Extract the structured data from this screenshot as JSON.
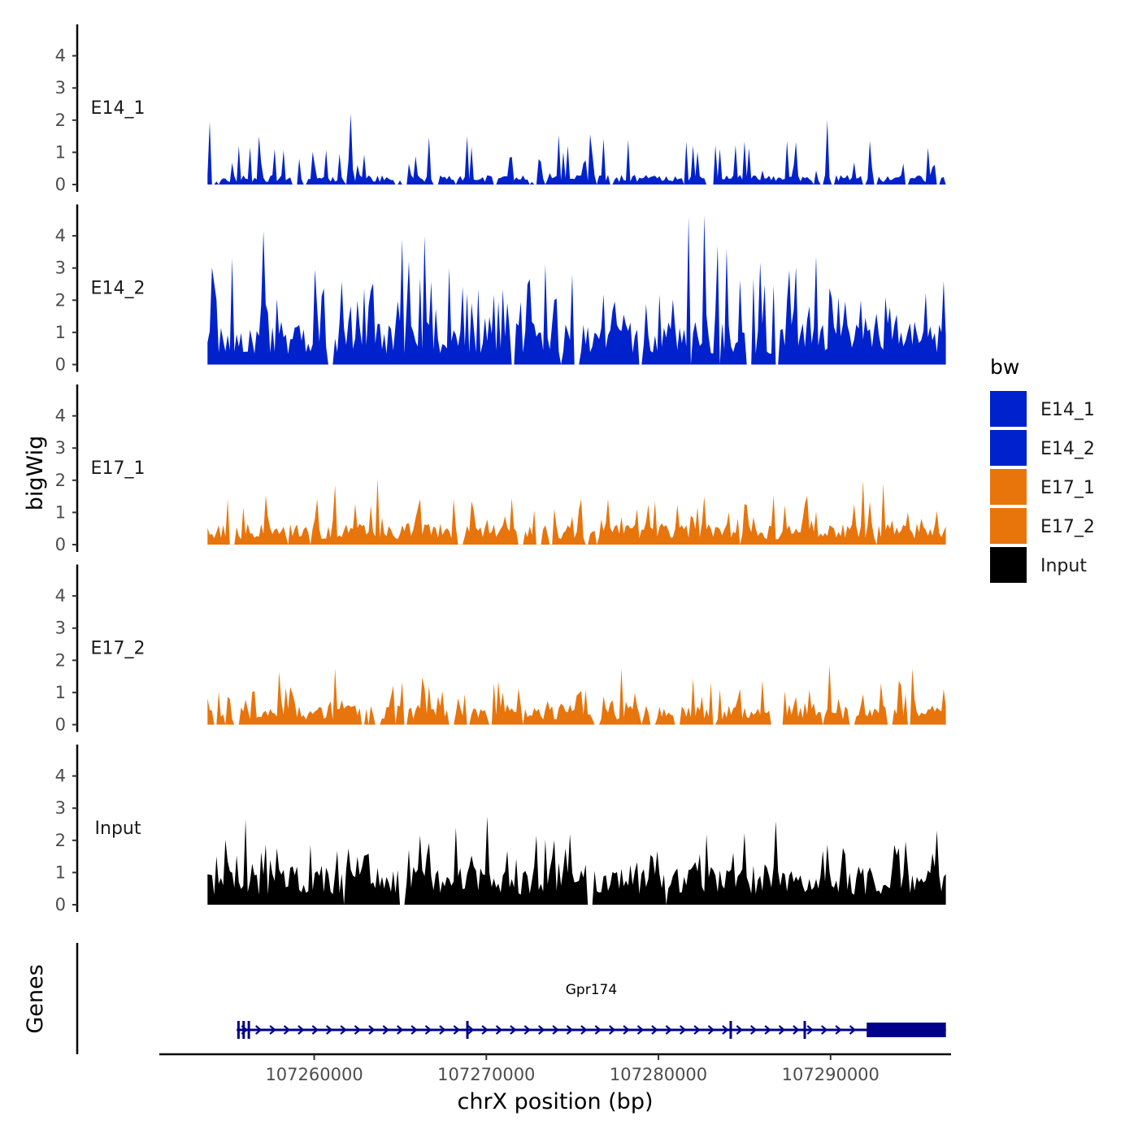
{
  "chart_data": {
    "type": "area",
    "y_axis_title": "bigWig",
    "gene_track_title": "Genes",
    "x_axis_title": "chrX position (bp)",
    "chromosome": "chrX",
    "x_range": [
      107251000,
      107297000
    ],
    "data_range": [
      107253800,
      107296700
    ],
    "y_range": [
      0,
      4.9
    ],
    "y_ticks": [
      0,
      1,
      2,
      3,
      4
    ],
    "x_ticks": [
      {
        "value": 107260000,
        "label": "107260000"
      },
      {
        "value": 107270000,
        "label": "107270000"
      },
      {
        "value": 107280000,
        "label": "107280000"
      },
      {
        "value": 107290000,
        "label": "107290000"
      }
    ],
    "legend": {
      "title": "bw",
      "entries": [
        {
          "label": "E14_1",
          "color": "#0022CC"
        },
        {
          "label": "E14_2",
          "color": "#0022CC"
        },
        {
          "label": "E17_1",
          "color": "#E8740C"
        },
        {
          "label": "E17_2",
          "color": "#E8740C"
        },
        {
          "label": "Input",
          "color": "#000000"
        }
      ]
    },
    "tracks": [
      {
        "name": "E14_1",
        "color": "#0022CC",
        "seed": 11,
        "base": 0.25,
        "spike_prob": 0.22,
        "spike_max": 1.3,
        "zero_prob": 0.3,
        "peaks": [
          [
            107253900,
            1.95
          ],
          [
            107262100,
            2.2
          ],
          [
            107289800,
            2.0
          ],
          [
            107256800,
            1.5
          ],
          [
            107295700,
            1.15
          ]
        ]
      },
      {
        "name": "E14_2",
        "color": "#0022CC",
        "seed": 23,
        "base": 1.1,
        "spike_prob": 0.3,
        "spike_max": 2.2,
        "zero_prob": 0.08,
        "peaks": [
          [
            107257100,
            4.15
          ],
          [
            107281800,
            4.6
          ],
          [
            107282600,
            4.65
          ],
          [
            107265100,
            3.9
          ],
          [
            107266400,
            4.0
          ],
          [
            107283400,
            3.7
          ],
          [
            107284000,
            3.6
          ],
          [
            107255200,
            3.3
          ],
          [
            107296600,
            2.6
          ]
        ]
      },
      {
        "name": "E17_1",
        "color": "#E8740C",
        "seed": 37,
        "base": 0.55,
        "spike_prob": 0.25,
        "spike_max": 1.0,
        "zero_prob": 0.12,
        "peaks": [
          [
            107263700,
            2.05
          ],
          [
            107291900,
            2.0
          ],
          [
            107261200,
            1.85
          ],
          [
            107293000,
            1.9
          ],
          [
            107282700,
            1.5
          ]
        ]
      },
      {
        "name": "E17_2",
        "color": "#E8740C",
        "seed": 53,
        "base": 0.5,
        "spike_prob": 0.28,
        "spike_max": 1.0,
        "zero_prob": 0.18,
        "peaks": [
          [
            107261200,
            1.75
          ],
          [
            107277800,
            1.75
          ],
          [
            107289900,
            1.85
          ],
          [
            107294800,
            1.75
          ],
          [
            107257900,
            1.65
          ]
        ]
      },
      {
        "name": "Input",
        "color": "#000000",
        "seed": 71,
        "base": 1.0,
        "spike_prob": 0.3,
        "spike_max": 1.3,
        "zero_prob": 0.02,
        "peaks": [
          [
            107270100,
            2.75
          ],
          [
            107256000,
            2.65
          ],
          [
            107286800,
            2.6
          ],
          [
            107268200,
            2.4
          ],
          [
            107274800,
            2.2
          ]
        ]
      }
    ],
    "gene": {
      "name": "Gpr174",
      "color": "#00008B",
      "strand": "+",
      "start": 107255500,
      "end": 107296700,
      "cds_start": 107292100,
      "cds_end": 107296700,
      "exon_marks": [
        107255600,
        107255900,
        107256200,
        107268900,
        107284200,
        107288500
      ]
    }
  }
}
